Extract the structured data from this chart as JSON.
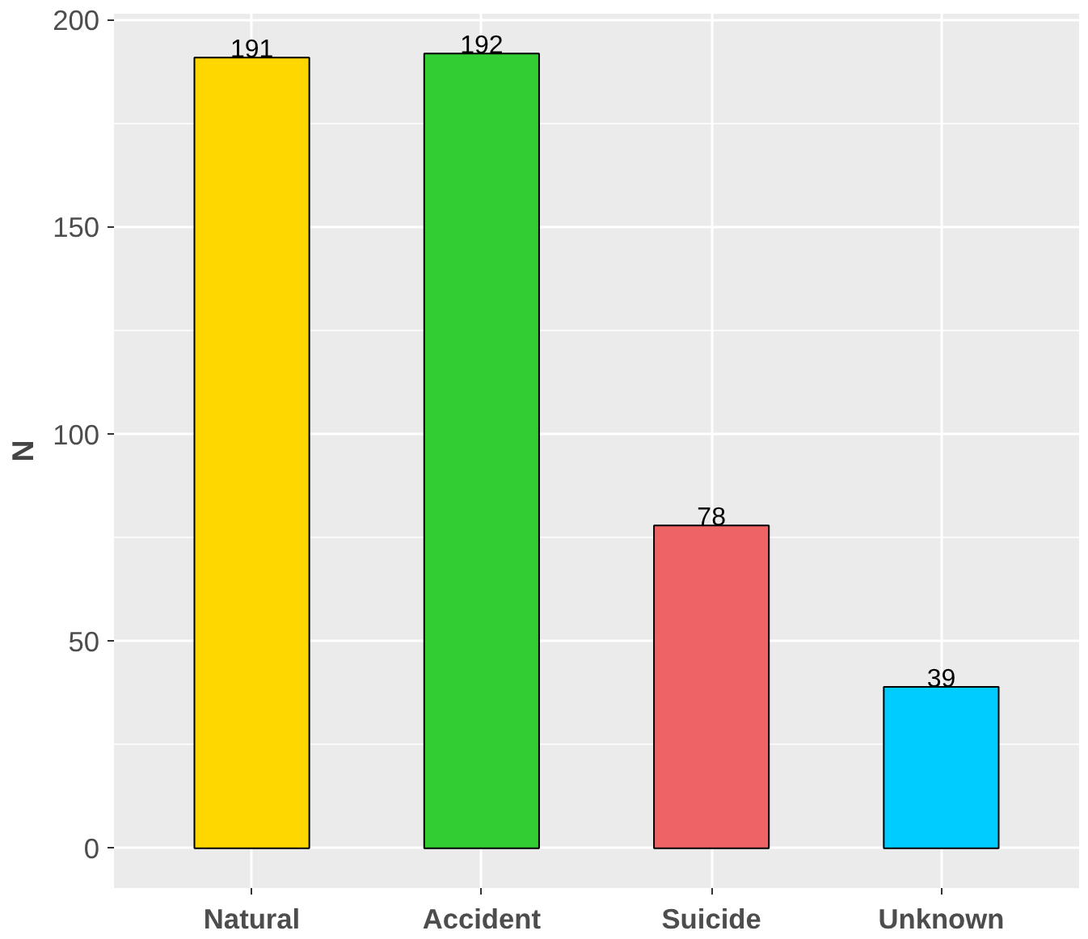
{
  "chart_data": {
    "type": "bar",
    "ylabel": "N",
    "categories": [
      "Natural",
      "Accident",
      "Suicide",
      "Unknown"
    ],
    "values": [
      191,
      192,
      78,
      39
    ],
    "colors": [
      "#ffd700",
      "#32cd32",
      "#ee6363",
      "#00ccff"
    ],
    "ylim": [
      -9.6,
      201.6
    ],
    "yticks": [
      0,
      50,
      100,
      150,
      200
    ],
    "grid": true,
    "data_labels": true
  }
}
